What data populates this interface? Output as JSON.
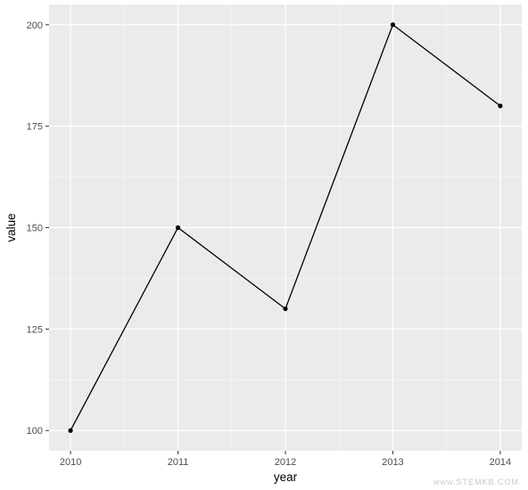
{
  "chart_data": {
    "type": "line",
    "x": [
      2010,
      2011,
      2012,
      2013,
      2014
    ],
    "series": [
      {
        "values": [
          100,
          150,
          130,
          200,
          180
        ]
      }
    ],
    "xlabel": "year",
    "ylabel": "value",
    "xticks": [
      "2010",
      "2011",
      "2012",
      "2013",
      "2014"
    ],
    "yticks": [
      "100",
      "125",
      "150",
      "175",
      "200"
    ],
    "xlim": [
      2009.8,
      2014.2
    ],
    "ylim": [
      95,
      205
    ],
    "grid": true,
    "points": true
  },
  "watermark": "www.STEMKB.COM",
  "colors": {
    "panel_background": "#ebebeb",
    "grid_major": "#ffffff",
    "line": "#000000"
  }
}
